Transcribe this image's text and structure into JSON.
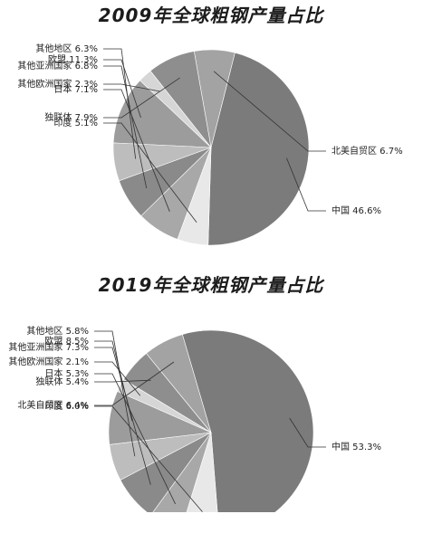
{
  "chart_data": [
    {
      "type": "pie",
      "title": "2009年全球粗钢产量占比",
      "slices": [
        {
          "label": "中国",
          "value": 46.6,
          "display": "46.6%",
          "color": "#7b7b7b"
        },
        {
          "label": "北美自贸区",
          "value": 6.7,
          "display": "6.7%",
          "color": "#a3a3a3"
        },
        {
          "label": "独联体",
          "value": 7.9,
          "display": "7.9%",
          "color": "#8e8e8e"
        },
        {
          "label": "其他欧洲国家",
          "value": 2.3,
          "display": "2.3%",
          "color": "#d6d6d6"
        },
        {
          "label": "欧盟",
          "value": 11.3,
          "display": "11.3%",
          "color": "#9c9c9c"
        },
        {
          "label": "其他地区",
          "value": 6.3,
          "display": "6.3%",
          "color": "#bdbdbd"
        },
        {
          "label": "其他亚洲国家",
          "value": 6.8,
          "display": "6.8%",
          "color": "#8a8a8a"
        },
        {
          "label": "日本",
          "value": 7.1,
          "display": "7.1%",
          "color": "#a8a8a8"
        },
        {
          "label": "印度",
          "value": 5.1,
          "display": "5.1%",
          "color": "#e8e8e8"
        }
      ]
    },
    {
      "type": "pie",
      "title": "2019年全球粗钢产量占比",
      "slices": [
        {
          "label": "中国",
          "value": 53.3,
          "display": "53.3%",
          "color": "#7b7b7b"
        },
        {
          "label": "北美自贸区",
          "value": 6.4,
          "display": "6.4%",
          "color": "#a3a3a3"
        },
        {
          "label": "独联体",
          "value": 5.4,
          "display": "5.4%",
          "color": "#8e8e8e"
        },
        {
          "label": "其他欧洲国家",
          "value": 2.1,
          "display": "2.1%",
          "color": "#d6d6d6"
        },
        {
          "label": "欧盟",
          "value": 8.5,
          "display": "8.5%",
          "color": "#9c9c9c"
        },
        {
          "label": "其他地区",
          "value": 5.8,
          "display": "5.8%",
          "color": "#bdbdbd"
        },
        {
          "label": "其他亚洲国家",
          "value": 7.3,
          "display": "7.3%",
          "color": "#8a8a8a"
        },
        {
          "label": "日本",
          "value": 5.3,
          "display": "5.3%",
          "color": "#a8a8a8"
        },
        {
          "label": "印度",
          "value": 6.0,
          "display": "6.0%",
          "color": "#e8e8e8"
        }
      ]
    }
  ]
}
